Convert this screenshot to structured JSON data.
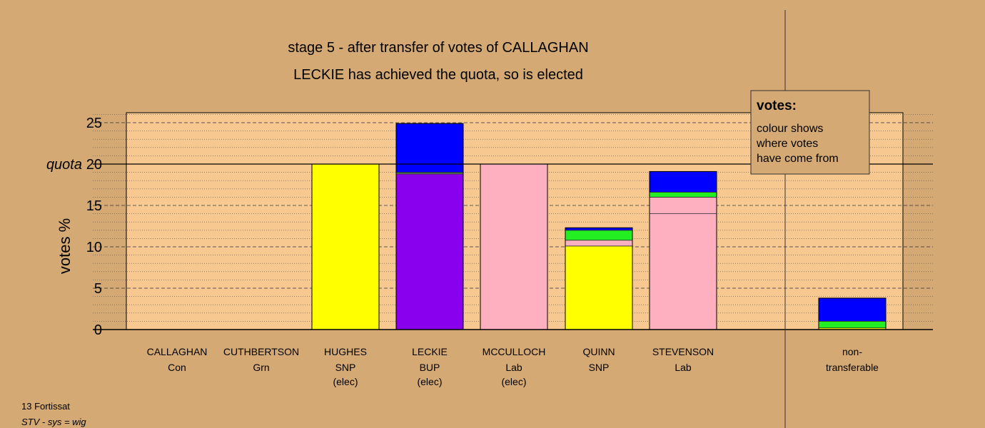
{
  "chart_data": {
    "type": "bar",
    "title": "stage 5 - after transfer of votes of CALLAGHAN",
    "subtitle": "LECKIE has achieved the quota, so is elected",
    "ylabel": "votes %",
    "ylim": [
      0,
      26
    ],
    "yticks": [
      0,
      5,
      10,
      15,
      20,
      25
    ],
    "quota": 20,
    "quota_label": "quota",
    "grid": true,
    "categories": [
      {
        "name": "CALLAGHAN",
        "party": "Con",
        "status": "",
        "segments": []
      },
      {
        "name": "CUTHBERTSON",
        "party": "Grn",
        "status": "",
        "segments": []
      },
      {
        "name": "HUGHES",
        "party": "SNP",
        "status": "(elec)",
        "segments": [
          {
            "from": "SNP",
            "color": "#ffff00",
            "value": 20.0
          }
        ]
      },
      {
        "name": "LECKIE",
        "party": "BUP",
        "status": "(elec)",
        "segments": [
          {
            "from": "BUP",
            "color": "#8800ee",
            "value": 18.8
          },
          {
            "from": "Lab",
            "color": "#ffb0c0",
            "value": 0.1
          },
          {
            "from": "Grn",
            "color": "#22ee22",
            "value": 0.1
          },
          {
            "from": "Con",
            "color": "#0000ff",
            "value": 5.9
          }
        ]
      },
      {
        "name": "MCCULLOCH",
        "party": "Lab",
        "status": "(elec)",
        "segments": [
          {
            "from": "Lab",
            "color": "#ffb0c0",
            "value": 20.0
          }
        ]
      },
      {
        "name": "QUINN",
        "party": "SNP",
        "status": "",
        "segments": [
          {
            "from": "SNP",
            "color": "#ffff00",
            "value": 10.1
          },
          {
            "from": "Lab",
            "color": "#ffb0c0",
            "value": 0.7
          },
          {
            "from": "Grn",
            "color": "#22ee22",
            "value": 1.2
          },
          {
            "from": "Con",
            "color": "#0000ff",
            "value": 0.3
          }
        ]
      },
      {
        "name": "STEVENSON",
        "party": "Lab",
        "status": "",
        "segments": [
          {
            "from": "Lab",
            "color": "#ffb0c0",
            "value": 14.0
          },
          {
            "from": "Lab",
            "color": "#ffb0c0",
            "value": 2.0
          },
          {
            "from": "Grn",
            "color": "#22ee22",
            "value": 0.6
          },
          {
            "from": "Con",
            "color": "#0000ff",
            "value": 2.5
          }
        ]
      },
      {
        "name": "non-",
        "party": "transferable",
        "status": "",
        "segments": [
          {
            "from": "SNP",
            "color": "#ffff00",
            "value": 0.2
          },
          {
            "from": "Grn",
            "color": "#22ee22",
            "value": 0.8
          },
          {
            "from": "Con",
            "color": "#0000ff",
            "value": 2.8
          }
        ]
      }
    ],
    "legend": {
      "title": "votes:",
      "lines": [
        "colour shows",
        "where votes",
        "have come from"
      ]
    }
  },
  "footer": {
    "line1": "13 Fortissat",
    "line2": "STV - sys = wig"
  }
}
